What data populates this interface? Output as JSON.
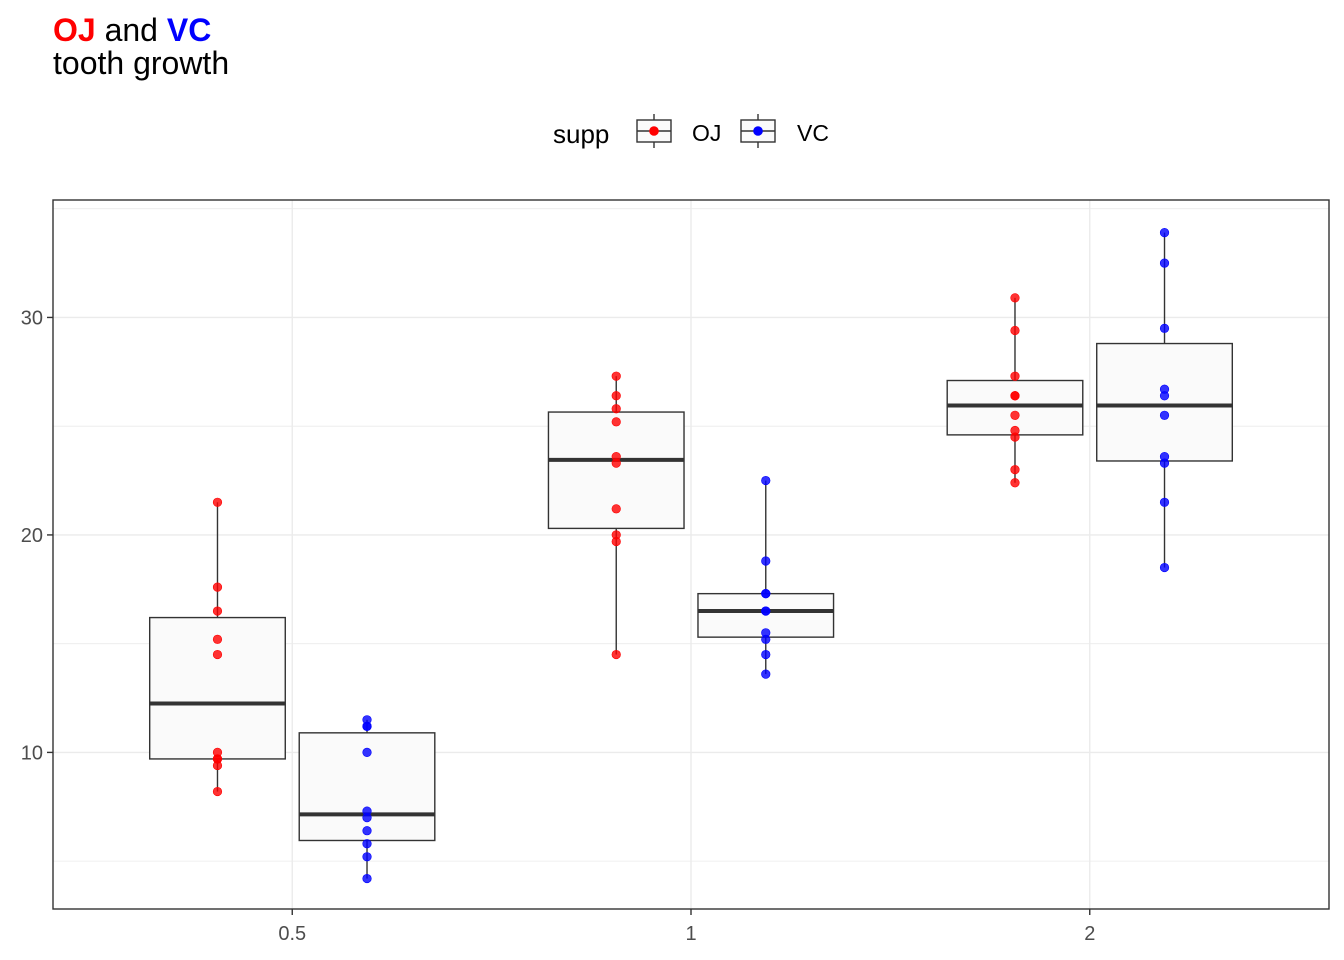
{
  "title": {
    "oj_word": "OJ",
    "and_word": " and ",
    "vc_word": "VC",
    "subtitle": "tooth growth"
  },
  "colors": {
    "OJ": "#ff0000",
    "VC": "#0000ff",
    "box_fill": "#fafafa",
    "box_line": "#333333",
    "grid": "#ebebeb"
  },
  "chart_data": {
    "type": "boxplot",
    "title": "OJ and VC tooth growth",
    "xlabel": "",
    "ylabel": "",
    "categories": [
      "0.5",
      "1",
      "2"
    ],
    "ylim": [
      2.8,
      35.4
    ],
    "yticks": [
      10,
      20,
      30
    ],
    "grid": true,
    "legend": {
      "title": "supp",
      "position": "top",
      "entries": [
        "OJ",
        "VC"
      ]
    },
    "series": [
      {
        "name": "OJ",
        "boxes": [
          {
            "category": "0.5",
            "q1": 9.7,
            "median": 12.25,
            "q3": 16.2,
            "whisker_low": 8.2,
            "whisker_high": 21.5,
            "points": [
              15.2,
              21.5,
              17.6,
              9.7,
              14.5,
              10.0,
              8.2,
              9.4,
              16.5,
              9.7
            ]
          },
          {
            "category": "1",
            "q1": 20.3,
            "median": 23.45,
            "q3": 25.65,
            "whisker_low": 14.5,
            "whisker_high": 27.3,
            "points": [
              19.7,
              23.3,
              23.6,
              26.4,
              20.0,
              25.2,
              25.8,
              21.2,
              14.5,
              27.3
            ]
          },
          {
            "category": "2",
            "q1": 24.6,
            "median": 25.95,
            "q3": 27.1,
            "whisker_low": 22.4,
            "whisker_high": 30.9,
            "points": [
              25.5,
              26.4,
              22.4,
              24.5,
              24.8,
              30.9,
              26.4,
              27.3,
              29.4,
              23.0
            ]
          }
        ]
      },
      {
        "name": "VC",
        "boxes": [
          {
            "category": "0.5",
            "q1": 5.95,
            "median": 7.15,
            "q3": 10.9,
            "whisker_low": 4.2,
            "whisker_high": 11.5,
            "points": [
              4.2,
              11.5,
              7.3,
              5.8,
              6.4,
              10.0,
              11.2,
              11.2,
              5.2,
              7.0
            ]
          },
          {
            "category": "1",
            "q1": 15.3,
            "median": 16.5,
            "q3": 17.3,
            "whisker_low": 13.6,
            "whisker_high": 22.5,
            "points": [
              16.5,
              16.5,
              15.2,
              17.3,
              22.5,
              17.3,
              13.6,
              14.5,
              18.8,
              15.5
            ]
          },
          {
            "category": "2",
            "q1": 23.4,
            "median": 25.95,
            "q3": 28.8,
            "whisker_low": 18.5,
            "whisker_high": 33.9,
            "points": [
              23.6,
              18.5,
              33.9,
              25.5,
              26.4,
              32.5,
              26.7,
              21.5,
              23.3,
              29.5
            ]
          }
        ]
      }
    ]
  }
}
